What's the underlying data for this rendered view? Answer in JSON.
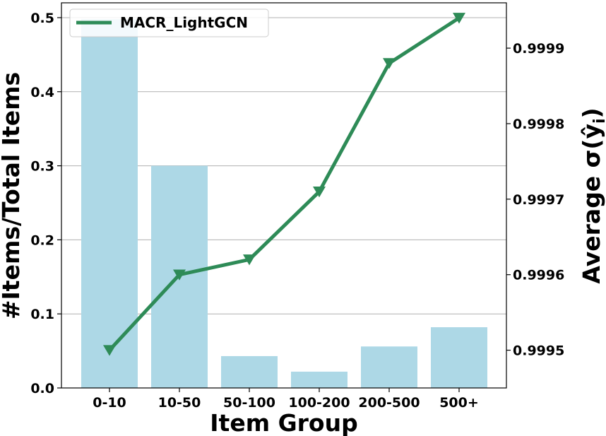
{
  "chart_data": {
    "type": "bar+line",
    "categories": [
      "0-10",
      "10-50",
      "50-100",
      "100-200",
      "200-500",
      "500+"
    ],
    "bars": {
      "values": [
        0.498,
        0.3,
        0.043,
        0.022,
        0.056,
        0.082
      ],
      "color": "#add8e6",
      "axis": "left"
    },
    "line": {
      "name": "MACR_LightGCN",
      "values": [
        0.9995,
        0.9996,
        0.99962,
        0.99971,
        0.99988,
        0.99994
      ],
      "color": "#2e8b57",
      "marker": "triangle-down",
      "axis": "right"
    },
    "xlabel": "Item Group",
    "ylabel_left": "#Items/Total Items",
    "ylabel_right_main": "Average σ(ŷ",
    "ylabel_right_sub": "i",
    "ylabel_right_close": ")",
    "ylim_left": [
      0,
      0.52
    ],
    "ylim_right": [
      0.99945,
      0.99996
    ],
    "yticks_left": [
      0.0,
      0.1,
      0.2,
      0.3,
      0.4,
      0.5
    ],
    "yticks_left_labels": [
      "0.0",
      "0.1",
      "0.2",
      "0.3",
      "0.4",
      "0.5"
    ],
    "yticks_right": [
      0.9995,
      0.9996,
      0.9997,
      0.9998,
      0.9999
    ],
    "yticks_right_labels": [
      "0.9995",
      "0.9996",
      "0.9997",
      "0.9998",
      "0.9999"
    ],
    "grid": true,
    "legend_position": "top-left"
  }
}
